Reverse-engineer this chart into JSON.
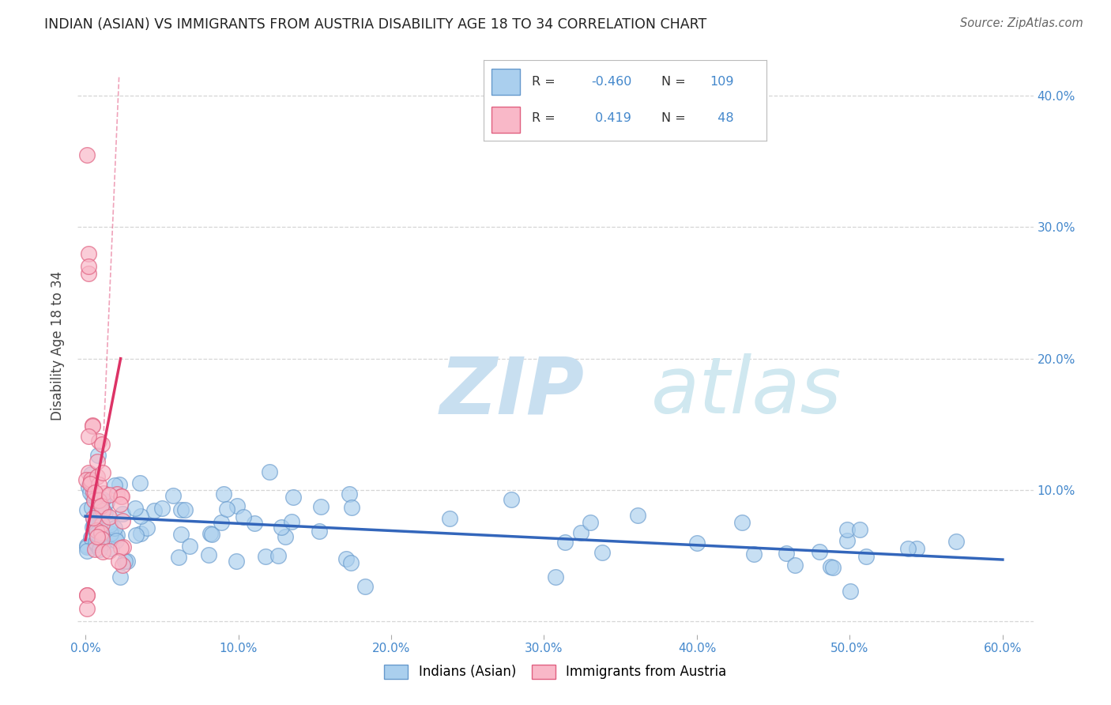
{
  "title": "INDIAN (ASIAN) VS IMMIGRANTS FROM AUSTRIA DISABILITY AGE 18 TO 34 CORRELATION CHART",
  "source": "Source: ZipAtlas.com",
  "ylabel_label": "Disability Age 18 to 34",
  "xlim": [
    -0.005,
    0.62
  ],
  "ylim": [
    -0.01,
    0.43
  ],
  "xticks": [
    0.0,
    0.1,
    0.2,
    0.3,
    0.4,
    0.5,
    0.6
  ],
  "xtick_labels": [
    "0.0%",
    "10.0%",
    "20.0%",
    "30.0%",
    "40.0%",
    "50.0%",
    "60.0%"
  ],
  "yticks_right": [
    0.1,
    0.2,
    0.3,
    0.4
  ],
  "ytick_labels_right": [
    "10.0%",
    "20.0%",
    "30.0%",
    "40.0%"
  ],
  "blue_R": -0.46,
  "blue_N": 109,
  "pink_R": 0.419,
  "pink_N": 48,
  "blue_color": "#aacfee",
  "pink_color": "#f9b8c8",
  "blue_edge_color": "#6699cc",
  "pink_edge_color": "#e06080",
  "blue_line_color": "#3366bb",
  "pink_line_color": "#dd3366",
  "legend_label_blue": "Indians (Asian)",
  "legend_label_pink": "Immigrants from Austria",
  "background_color": "#ffffff",
  "grid_color": "#cccccc",
  "title_color": "#222222",
  "tick_label_color": "#4488cc",
  "source_color": "#666666",
  "stats_text_color": "#4488cc",
  "watermark_zip_color": "#c8dff0",
  "watermark_atlas_color": "#d0e8f0"
}
